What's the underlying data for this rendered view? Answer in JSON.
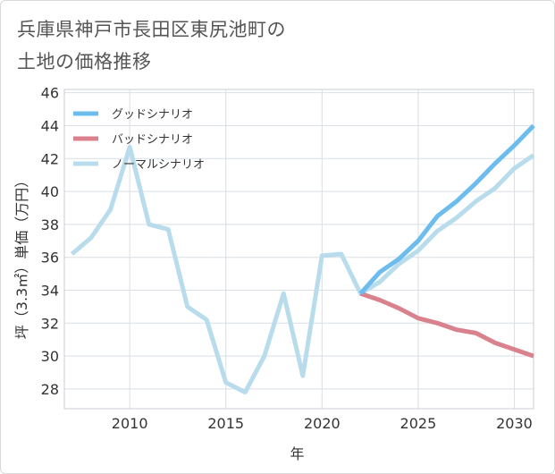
{
  "title_line1": "兵庫県神戸市長田区東尻池町の",
  "title_line2": "土地の価格推移",
  "colors": {
    "good": "#6cbcee",
    "bad": "#d9828e",
    "normal": "#b8dcec",
    "grid": "#d9dfe5",
    "text": "#333333",
    "title": "#555555"
  },
  "chart_data": {
    "type": "line",
    "xlabel": "年",
    "ylabel": "坪（3.3㎡）単価（万円）",
    "xlim": [
      2006.6,
      2031
    ],
    "ylim": [
      26.8,
      46.2
    ],
    "x_ticks": [
      2010,
      2015,
      2020,
      2025,
      2030
    ],
    "y_ticks": [
      28,
      30,
      32,
      34,
      36,
      38,
      40,
      42,
      44,
      46
    ],
    "legend_position": "top-left",
    "series": [
      {
        "name": "グッドシナリオ",
        "key": "good",
        "x": [
          2022,
          2023,
          2024,
          2025,
          2026,
          2027,
          2028,
          2029,
          2030,
          2031
        ],
        "values": [
          33.8,
          35.1,
          35.9,
          37.0,
          38.5,
          39.4,
          40.5,
          41.7,
          42.8,
          44.0
        ]
      },
      {
        "name": "バッドシナリオ",
        "key": "bad",
        "x": [
          2022,
          2023,
          2024,
          2025,
          2026,
          2027,
          2028,
          2029,
          2030,
          2031
        ],
        "values": [
          33.8,
          33.4,
          32.9,
          32.3,
          32.0,
          31.6,
          31.4,
          30.8,
          30.4,
          30.0
        ]
      },
      {
        "name": "ノーマルシナリオ",
        "key": "normal",
        "x": [
          2007,
          2008,
          2009,
          2010,
          2011,
          2012,
          2013,
          2014,
          2015,
          2016,
          2017,
          2018,
          2019,
          2020,
          2021,
          2022,
          2023,
          2024,
          2025,
          2026,
          2027,
          2028,
          2029,
          2030,
          2031
        ],
        "values": [
          36.2,
          37.2,
          38.9,
          42.7,
          38.0,
          37.7,
          33.0,
          32.2,
          28.4,
          27.8,
          30.0,
          33.8,
          28.8,
          36.1,
          36.2,
          33.8,
          34.5,
          35.6,
          36.4,
          37.6,
          38.4,
          39.4,
          40.2,
          41.4,
          42.2
        ]
      }
    ]
  }
}
